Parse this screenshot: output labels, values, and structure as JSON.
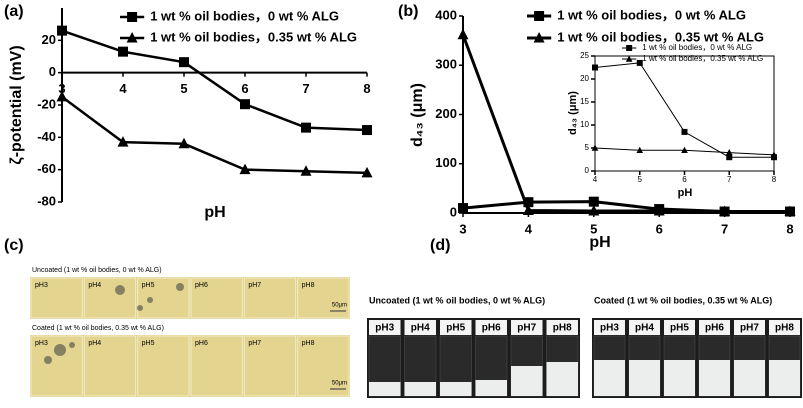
{
  "chart_data": [
    {
      "type": "line",
      "label": "(a)",
      "xlabel": "pH",
      "ylabel": "ζ-potential (mV)",
      "x": [
        3,
        4,
        5,
        6,
        7,
        8
      ],
      "xlim": [
        3,
        8
      ],
      "xticks": [
        3,
        4,
        5,
        6,
        7,
        8
      ],
      "ylim": [
        -80,
        40
      ],
      "yticks": [
        -80,
        -60,
        -40,
        -20,
        0,
        20
      ],
      "series": [
        {
          "name": "1 wt % oil bodies，0 wt % ALG",
          "marker": "square",
          "color": "#000000",
          "values": [
            26,
            13,
            6.5,
            -19.5,
            -34,
            -35.5
          ]
        },
        {
          "name": "1 wt % oil bodies，0.35 wt % ALG",
          "marker": "triangle",
          "color": "#000000",
          "values": [
            -15,
            -43,
            -44,
            -60,
            -61,
            -62
          ]
        }
      ]
    },
    {
      "type": "line",
      "label": "(b)",
      "xlabel": "pH",
      "ylabel": "d₄₃ (μm)",
      "x": [
        3,
        4,
        5,
        6,
        7,
        8
      ],
      "xlim": [
        3,
        8
      ],
      "xticks": [
        3,
        4,
        5,
        6,
        7,
        8
      ],
      "ylim": [
        0,
        400
      ],
      "yticks": [
        0,
        100,
        200,
        300,
        400
      ],
      "series": [
        {
          "name": "1 wt % oil bodies，0 wt % ALG",
          "marker": "square",
          "color": "#000000",
          "values": [
            10,
            22,
            23,
            8,
            3,
            3
          ]
        },
        {
          "name": "1 wt % oil bodies，0.35 wt % ALG",
          "marker": "triangle",
          "color": "#000000",
          "values": [
            362,
            5,
            4,
            4,
            3,
            3
          ]
        }
      ]
    },
    {
      "type": "line",
      "xlabel": "pH",
      "ylabel": "d₄₃ (μm)",
      "x": [
        4,
        5,
        6,
        7,
        8
      ],
      "xlim": [
        4,
        8
      ],
      "xticks": [
        4,
        5,
        6,
        7,
        8
      ],
      "ylim": [
        0,
        25
      ],
      "yticks": [
        0,
        5,
        10,
        15,
        20,
        25
      ],
      "series": [
        {
          "name": "1 wt % oil bodies，0 wt % ALG",
          "marker": "square",
          "color": "#000000",
          "values": [
            22.5,
            23.5,
            8.5,
            3,
            3
          ]
        },
        {
          "name": "1 wt % oil bodies，0.35 wt % ALG",
          "marker": "triangle",
          "color": "#000000",
          "values": [
            5,
            4.5,
            4.5,
            4,
            3.5
          ]
        }
      ]
    }
  ],
  "panels": [
    {
      "label": "(c)",
      "rows": [
        {
          "caption": "Uncoated (1 wt % oil bodies, 0 wt % ALG)",
          "cells": [
            "pH3",
            "pH4",
            "pH5",
            "pH6",
            "pH7",
            "pH8"
          ],
          "scale": "50μm"
        },
        {
          "caption": "Coated (1 wt % oil bodies, 0.35 wt % ALG)",
          "cells": [
            "pH3",
            "pH4",
            "pH5",
            "pH6",
            "pH7",
            "pH8"
          ],
          "scale": "50μm"
        }
      ]
    },
    {
      "label": "(d)",
      "photos": [
        {
          "caption": "Uncoated (1 wt % oil bodies, 0 wt % ALG)",
          "vials": [
            "pH3",
            "pH4",
            "pH5",
            "pH6",
            "pH7",
            "pH8"
          ]
        },
        {
          "caption": "Coated (1 wt % oil bodies, 0.35 wt % ALG)",
          "vials": [
            "pH3",
            "pH4",
            "pH5",
            "pH6",
            "pH7",
            "pH8"
          ]
        }
      ]
    }
  ]
}
